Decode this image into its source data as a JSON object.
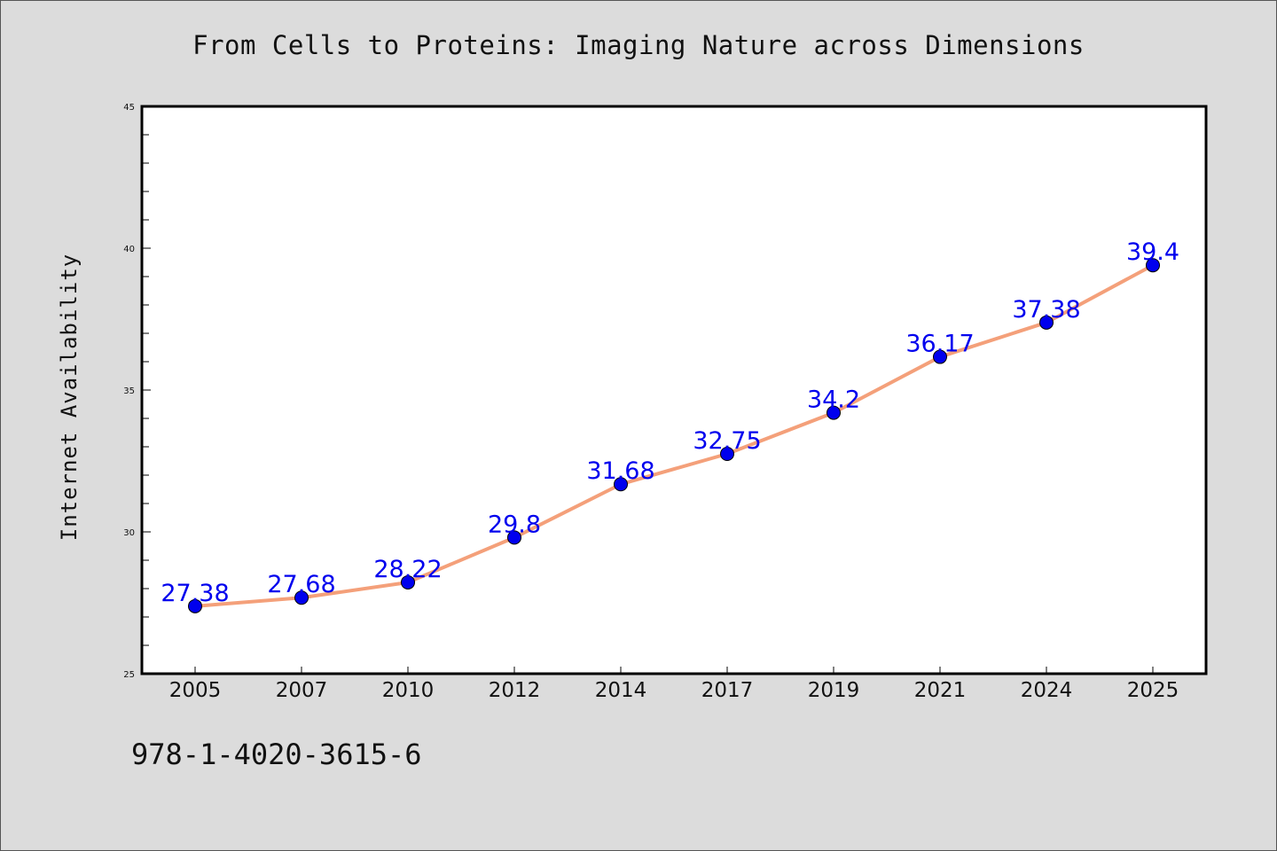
{
  "title": "From Cells to Proteins: Imaging Nature across Dimensions",
  "footer_code": "978-1-4020-3615-6",
  "colors": {
    "background": "#dcdcdc",
    "plot_bg": "#ffffff",
    "line": "#f4a07a",
    "marker": "#0000ee",
    "label": "#0000ee"
  },
  "chart_data": {
    "type": "line",
    "title": "From Cells to Proteins: Imaging Nature across Dimensions",
    "xlabel": "",
    "ylabel": "Internet Availability",
    "categories": [
      "2005",
      "2007",
      "2010",
      "2012",
      "2014",
      "2017",
      "2019",
      "2021",
      "2024",
      "2025"
    ],
    "series": [
      {
        "values": [
          27.38,
          27.68,
          28.22,
          29.8,
          31.68,
          32.75,
          34.2,
          36.17,
          37.38,
          39.4
        ]
      }
    ],
    "data_labels": [
      "27.38",
      "27.68",
      "28.22",
      "29.8",
      "31.68",
      "32.75",
      "34.2",
      "36.17",
      "37.38",
      "39.4"
    ],
    "ylim": [
      25,
      45
    ],
    "yticks": [
      "25",
      "30",
      "35",
      "40",
      "45"
    ],
    "grid": false,
    "legend": "none"
  }
}
